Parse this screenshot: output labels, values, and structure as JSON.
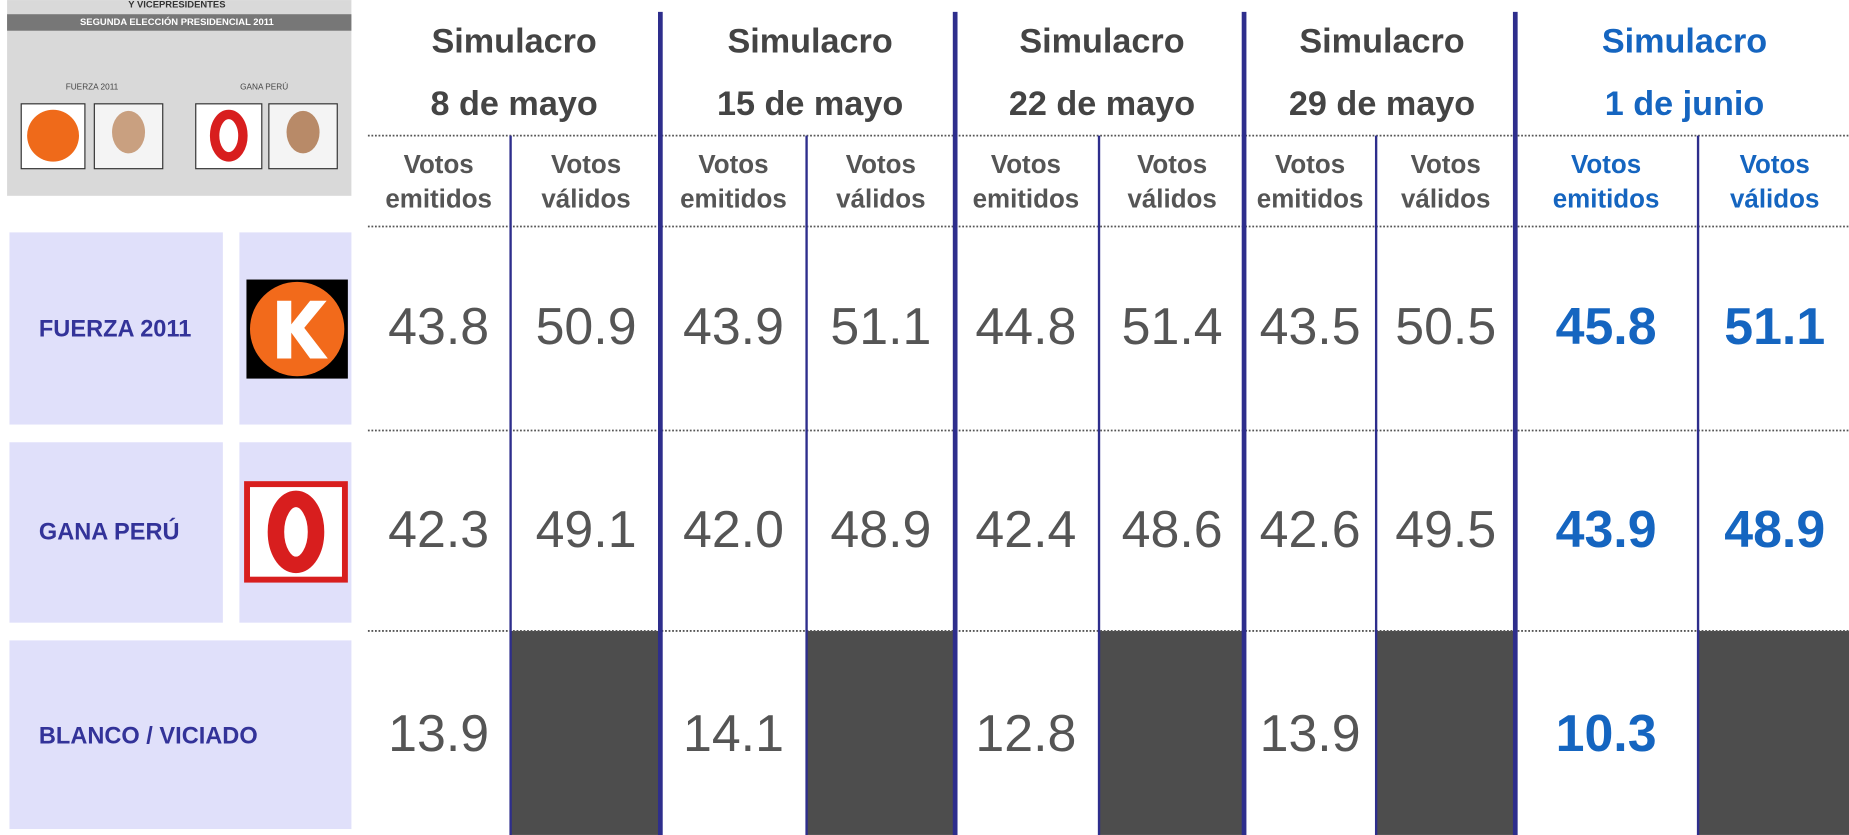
{
  "ballot": {
    "heading": "Y VICEPRESIDENTES",
    "title": "SEGUNDA ELECCIÓN PRESIDENCIAL 2011",
    "party_1": "FUERZA 2011",
    "party_2": "GANA PERÚ"
  },
  "table": {
    "groups": [
      {
        "title": "Simulacro",
        "date": "8 de mayo"
      },
      {
        "title": "Simulacro",
        "date": "15 de mayo"
      },
      {
        "title": "Simulacro",
        "date": "22 de mayo"
      },
      {
        "title": "Simulacro",
        "date": "29 de mayo"
      },
      {
        "title": "Simulacro",
        "date": "1 de junio"
      }
    ],
    "subheaders": [
      [
        "Votos",
        "emitidos"
      ],
      [
        "Votos",
        "válidos"
      ]
    ],
    "rows": [
      {
        "label": "FUERZA 2011",
        "values": [
          "43.8",
          "50.9",
          "43.9",
          "51.1",
          "44.8",
          "51.4",
          "43.5",
          "50.5",
          "45.8",
          "51.1"
        ]
      },
      {
        "label": "GANA PERÚ",
        "values": [
          "42.3",
          "49.1",
          "42.0",
          "48.9",
          "42.4",
          "48.6",
          "42.6",
          "49.5",
          "43.9",
          "48.9"
        ]
      },
      {
        "label": "BLANCO / VICIADO",
        "values": [
          "13.9",
          null,
          "14.1",
          null,
          "12.8",
          null,
          "13.9",
          null,
          "10.3",
          null
        ]
      }
    ]
  }
}
